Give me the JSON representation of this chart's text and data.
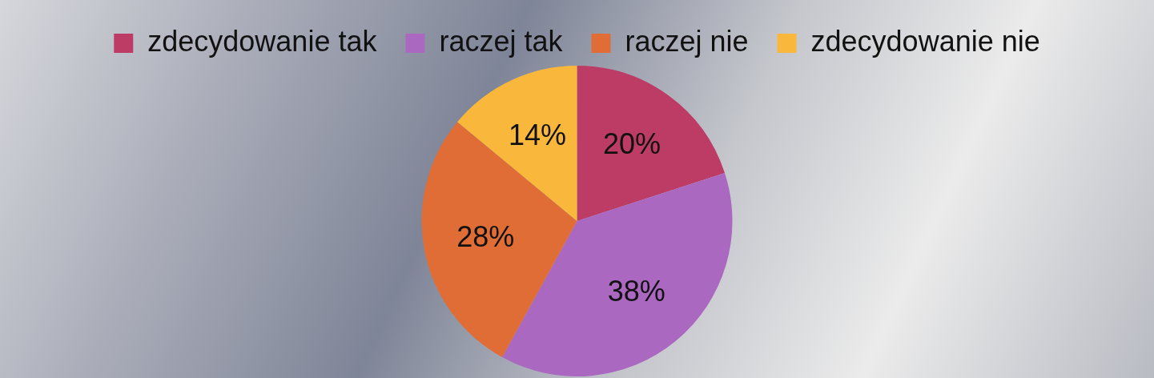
{
  "chart_data": {
    "type": "pie",
    "categories": [
      "zdecydowanie tak",
      "raczej tak",
      "raczej nie",
      "zdecydowanie nie"
    ],
    "values": [
      20,
      38,
      28,
      14
    ],
    "colors": [
      "#bc3c66",
      "#ab68c0",
      "#e06d36",
      "#f9b73b"
    ],
    "value_labels": [
      "20%",
      "38%",
      "28%",
      "14%"
    ],
    "legend": "top"
  }
}
